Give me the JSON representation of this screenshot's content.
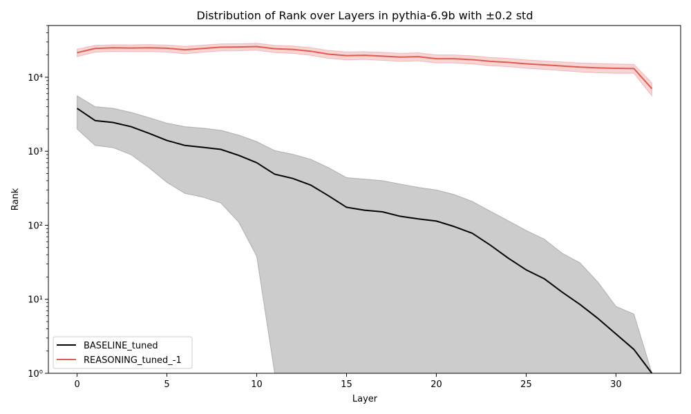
{
  "chart_data": {
    "type": "line",
    "title": "Distribution of Rank over Layers in pythia-6.9b with ±0.2 std",
    "xlabel": "Layer",
    "ylabel": "Rank",
    "xlim": [
      -1.6,
      33.6
    ],
    "ylim": [
      1,
      50000
    ],
    "yscale": "log",
    "x_ticks": [
      0,
      5,
      10,
      15,
      20,
      25,
      30
    ],
    "y_ticks": [
      {
        "value": 1,
        "label": "10⁰"
      },
      {
        "value": 10,
        "label": "10¹"
      },
      {
        "value": 100,
        "label": "10²"
      },
      {
        "value": 1000,
        "label": "10³"
      },
      {
        "value": 10000,
        "label": "10⁴"
      }
    ],
    "legend_position": "lower-left",
    "x": [
      0,
      1,
      2,
      3,
      4,
      5,
      6,
      7,
      8,
      9,
      10,
      11,
      12,
      13,
      14,
      15,
      16,
      17,
      18,
      19,
      20,
      21,
      22,
      23,
      24,
      25,
      26,
      27,
      28,
      29,
      30,
      31,
      32
    ],
    "series": [
      {
        "name": "BASELINE_tuned",
        "color": "#000000",
        "band_color": "#999999",
        "values": [
          3800,
          2600,
          2450,
          2150,
          1750,
          1400,
          1200,
          1130,
          1060,
          880,
          700,
          490,
          430,
          350,
          250,
          175,
          160,
          152,
          132,
          122,
          114,
          96,
          78,
          54,
          36,
          25,
          19,
          12.5,
          8.5,
          5.5,
          3.4,
          2.1,
          1.0
        ],
        "lower": [
          2000,
          1200,
          1120,
          900,
          600,
          380,
          270,
          240,
          200,
          110,
          38,
          0,
          0,
          0,
          0,
          0,
          0,
          0,
          0,
          0,
          0,
          0,
          0,
          0,
          0,
          0,
          0,
          0,
          0,
          0,
          0,
          0,
          0
        ],
        "upper": [
          5600,
          4000,
          3800,
          3350,
          2850,
          2400,
          2150,
          2050,
          1920,
          1650,
          1350,
          1020,
          910,
          780,
          600,
          440,
          420,
          400,
          360,
          325,
          300,
          260,
          210,
          155,
          115,
          85,
          65,
          42,
          31,
          17,
          8,
          6.3,
          1.0
        ]
      },
      {
        "name": "REASONING_tuned_-1",
        "color": "#e05a4e",
        "band_color": "#e57373",
        "values": [
          21500,
          24500,
          25000,
          24800,
          25000,
          24700,
          23500,
          24500,
          25500,
          25600,
          26000,
          24300,
          23800,
          22500,
          20500,
          19600,
          19800,
          19300,
          18700,
          19000,
          17800,
          17800,
          17300,
          16400,
          15900,
          15200,
          14700,
          14200,
          13700,
          13400,
          13200,
          13100,
          7000
        ],
        "lower": [
          19000,
          21800,
          22300,
          22100,
          22200,
          21900,
          20700,
          21800,
          22700,
          22800,
          23200,
          21500,
          21000,
          19800,
          18000,
          17200,
          17400,
          16900,
          16400,
          16700,
          15600,
          15600,
          15100,
          14300,
          13900,
          13200,
          12800,
          12300,
          11800,
          11500,
          11300,
          11300,
          5600
        ],
        "upper": [
          24000,
          27000,
          27500,
          27400,
          27600,
          27300,
          26200,
          27200,
          28200,
          28400,
          28800,
          27000,
          26500,
          25100,
          23000,
          22000,
          22200,
          21700,
          21100,
          21400,
          20000,
          20000,
          19500,
          18500,
          18000,
          17200,
          16600,
          16100,
          15600,
          15300,
          15100,
          15000,
          8400
        ]
      }
    ]
  }
}
